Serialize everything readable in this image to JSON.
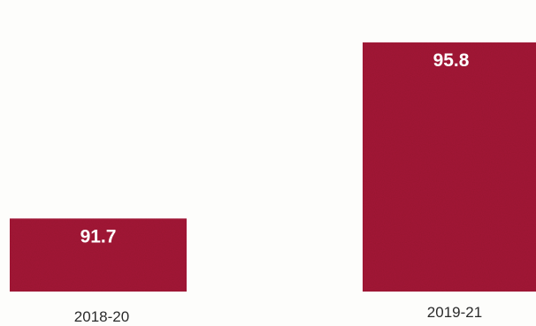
{
  "chart_data": {
    "type": "bar",
    "categories": [
      "2018-20",
      "2019-21"
    ],
    "values": [
      91.7,
      95.8
    ],
    "value_labels": [
      "91.7",
      "95.8"
    ],
    "title": "",
    "xlabel": "",
    "ylabel": "",
    "ylim": [
      90,
      96.5
    ],
    "grid": false,
    "legend": "none",
    "bar_color": "#a51c37",
    "value_label_color": "#ffffff",
    "tick_label_color": "#2b2b2b",
    "background_color": "#fdfdfb"
  }
}
